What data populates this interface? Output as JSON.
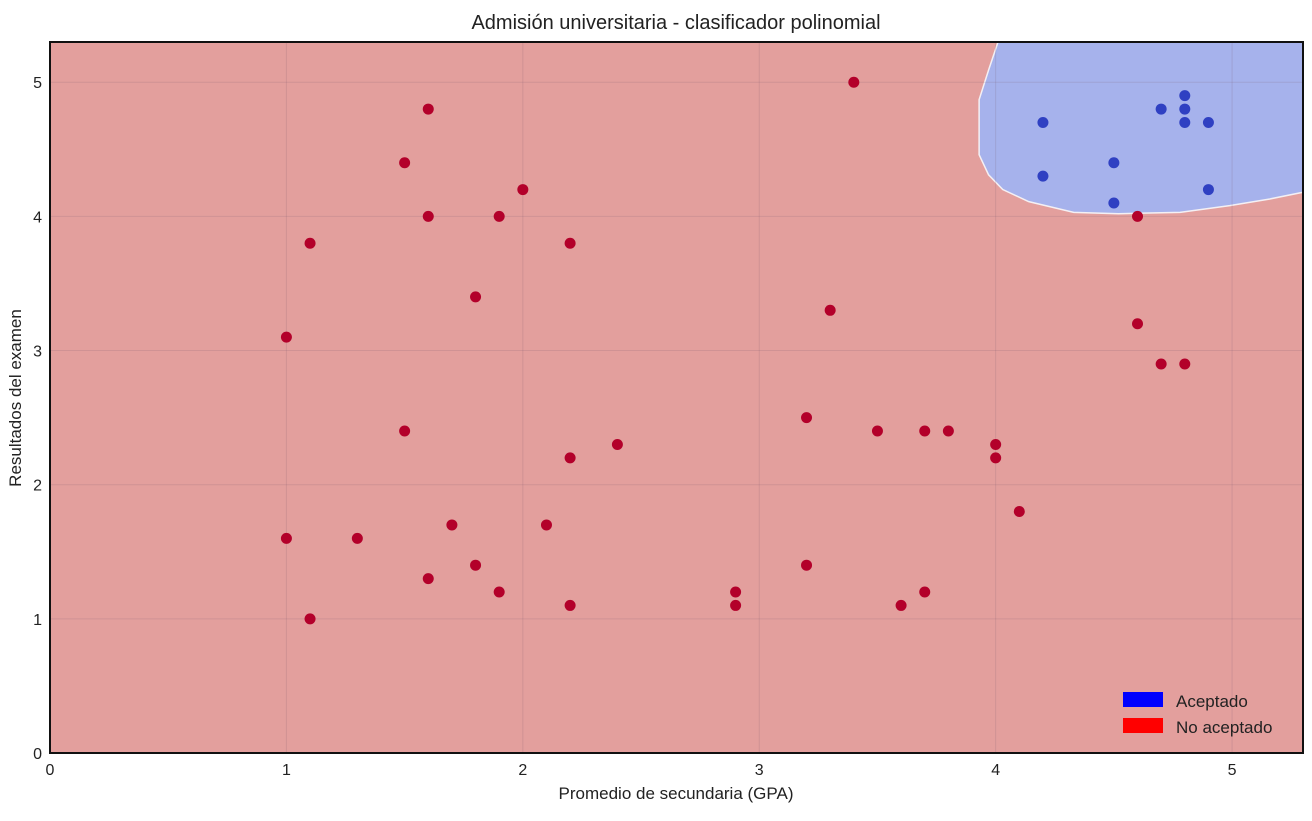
{
  "chart_data": {
    "type": "scatter",
    "title": "Admisión universitaria - clasificador polinomial",
    "xlabel": "Promedio de secundaria (GPA)",
    "ylabel": "Resultados del examen",
    "xlim": [
      0,
      5.3
    ],
    "ylim": [
      0,
      5.3
    ],
    "xticks": [
      0,
      1,
      2,
      3,
      4,
      5
    ],
    "yticks": [
      0,
      1,
      2,
      3,
      4,
      5
    ],
    "grid": true,
    "legend_position": "bottom-right",
    "legend": [
      {
        "label": "Aceptado",
        "color": "#0000ff"
      },
      {
        "label": "No aceptado",
        "color": "#ff0000"
      }
    ],
    "regions": {
      "background_color": "#e39f9d",
      "accepted_color": "#a6b2ec",
      "accepted_boundary": [
        [
          4.01,
          5.3
        ],
        [
          3.97,
          5.09
        ],
        [
          3.93,
          4.87
        ],
        [
          3.93,
          4.46
        ],
        [
          3.97,
          4.31
        ],
        [
          4.03,
          4.2
        ],
        [
          4.14,
          4.11
        ],
        [
          4.33,
          4.03
        ],
        [
          4.52,
          4.02
        ],
        [
          4.78,
          4.03
        ],
        [
          4.99,
          4.08
        ],
        [
          5.16,
          4.13
        ],
        [
          5.3,
          4.18
        ]
      ]
    },
    "series": [
      {
        "name": "Aceptado",
        "color": "#2f40c2",
        "points": [
          [
            4.8,
            4.9
          ],
          [
            4.7,
            4.8
          ],
          [
            4.8,
            4.8
          ],
          [
            4.2,
            4.7
          ],
          [
            4.8,
            4.7
          ],
          [
            4.9,
            4.7
          ],
          [
            4.5,
            4.4
          ],
          [
            4.2,
            4.3
          ],
          [
            4.9,
            4.2
          ],
          [
            4.5,
            4.1
          ]
        ]
      },
      {
        "name": "No aceptado",
        "color": "#b3002a",
        "points": [
          [
            1.6,
            4.8
          ],
          [
            3.4,
            5.0
          ],
          [
            1.5,
            4.4
          ],
          [
            2.0,
            4.2
          ],
          [
            1.6,
            4.0
          ],
          [
            1.9,
            4.0
          ],
          [
            1.1,
            3.8
          ],
          [
            2.2,
            3.8
          ],
          [
            1.8,
            3.4
          ],
          [
            1.0,
            3.1
          ],
          [
            3.3,
            3.3
          ],
          [
            4.6,
            4.0
          ],
          [
            4.6,
            3.2
          ],
          [
            4.7,
            2.9
          ],
          [
            4.8,
            2.9
          ],
          [
            1.5,
            2.4
          ],
          [
            2.4,
            2.3
          ],
          [
            2.2,
            2.2
          ],
          [
            3.2,
            2.5
          ],
          [
            3.5,
            2.4
          ],
          [
            3.7,
            2.4
          ],
          [
            3.8,
            2.4
          ],
          [
            4.0,
            2.3
          ],
          [
            4.0,
            2.2
          ],
          [
            4.1,
            1.8
          ],
          [
            1.0,
            1.6
          ],
          [
            1.3,
            1.6
          ],
          [
            1.7,
            1.7
          ],
          [
            2.1,
            1.7
          ],
          [
            1.6,
            1.3
          ],
          [
            1.8,
            1.4
          ],
          [
            1.9,
            1.2
          ],
          [
            2.2,
            1.1
          ],
          [
            1.1,
            1.0
          ],
          [
            2.9,
            1.2
          ],
          [
            2.9,
            1.1
          ],
          [
            3.2,
            1.4
          ],
          [
            3.6,
            1.1
          ],
          [
            3.7,
            1.2
          ]
        ]
      }
    ]
  }
}
